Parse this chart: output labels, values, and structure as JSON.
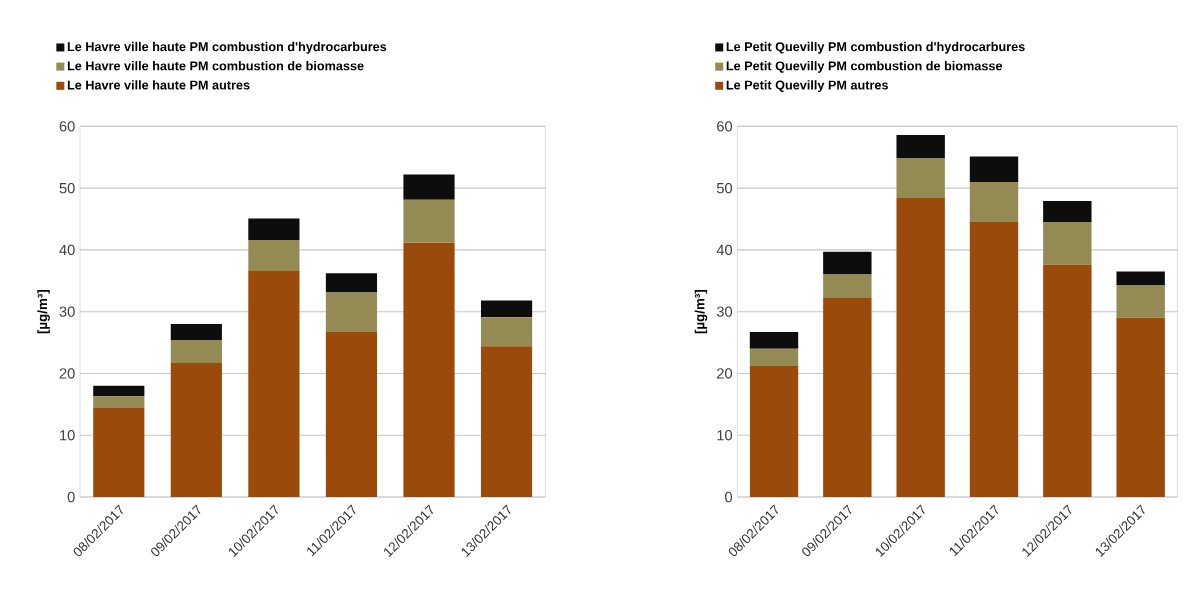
{
  "chart_data": [
    {
      "type": "bar",
      "stacked": true,
      "ylabel": "[µg/m³]",
      "categories": [
        "08/02/2017",
        "09/02/2017",
        "10/02/2017",
        "11/02/2017",
        "12/02/2017",
        "13/02/2017"
      ],
      "ylim": [
        0,
        60
      ],
      "yticks": [
        0,
        10,
        20,
        30,
        40,
        50,
        60
      ],
      "grid": "y",
      "legend": "top",
      "series": [
        {
          "name": "Le Havre ville haute PM autres",
          "color": "#9a4a0a",
          "values": [
            14.4,
            21.7,
            36.6,
            26.8,
            41.2,
            24.4
          ]
        },
        {
          "name": "Le Havre ville haute PM combustion de biomasse",
          "color": "#948a54",
          "values": [
            1.9,
            3.7,
            5.0,
            6.3,
            6.9,
            4.7
          ]
        },
        {
          "name": "Le Havre ville haute PM combustion d'hydrocarbures",
          "color": "#0d0d0d",
          "values": [
            1.7,
            2.6,
            3.5,
            3.1,
            4.1,
            2.7
          ]
        }
      ]
    },
    {
      "type": "bar",
      "stacked": true,
      "ylabel": "[µg/m³]",
      "categories": [
        "08/02/2017",
        "09/02/2017",
        "10/02/2017",
        "11/02/2017",
        "12/02/2017",
        "13/02/2017"
      ],
      "ylim": [
        0,
        60
      ],
      "yticks": [
        0,
        10,
        20,
        30,
        40,
        50,
        60
      ],
      "grid": "y",
      "legend": "top",
      "series": [
        {
          "name": "Le Petit Quevilly PM autres",
          "color": "#9a4a0a",
          "values": [
            21.2,
            32.2,
            48.4,
            44.5,
            37.6,
            29.0
          ]
        },
        {
          "name": "Le Petit Quevilly PM combustion de biomasse",
          "color": "#948a54",
          "values": [
            2.8,
            3.8,
            6.4,
            6.5,
            6.9,
            5.3
          ]
        },
        {
          "name": "Le Petit Quevilly PM combustion d'hydrocarbures",
          "color": "#0d0d0d",
          "values": [
            2.7,
            3.7,
            3.8,
            4.1,
            3.4,
            2.2
          ]
        }
      ]
    }
  ]
}
